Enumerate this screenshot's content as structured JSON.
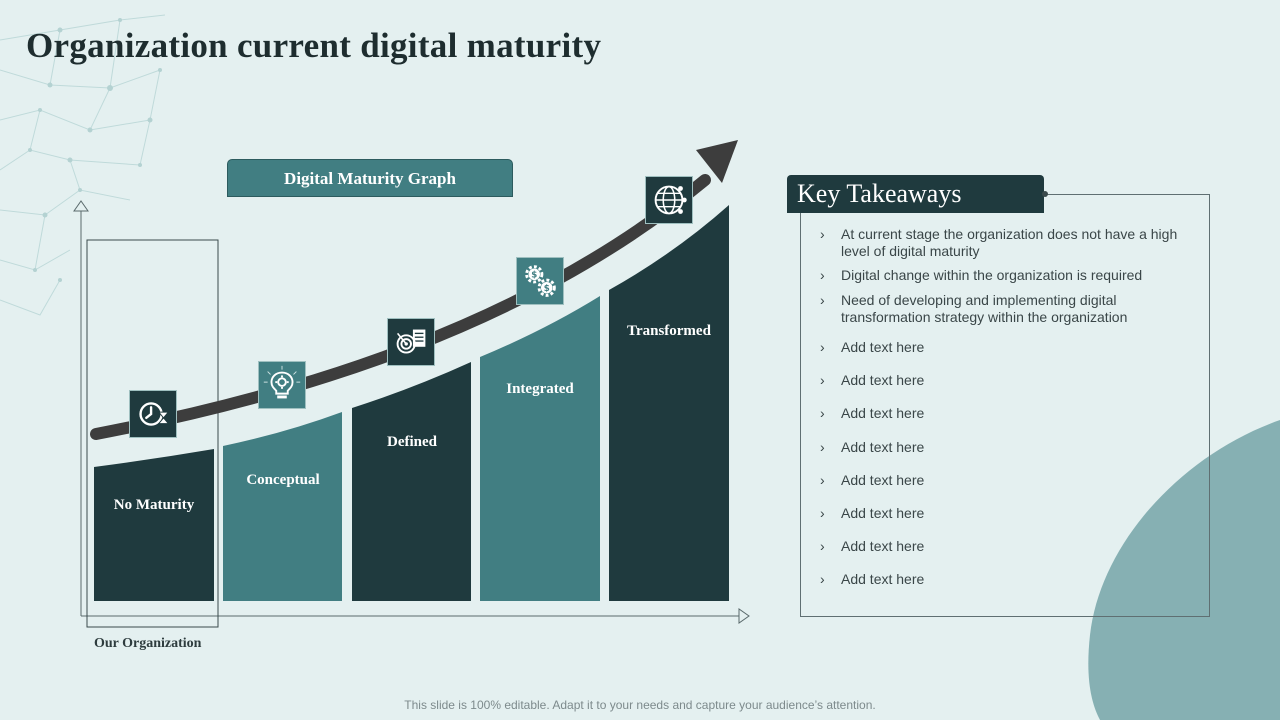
{
  "slide": {
    "title": "Organization current digital maturity",
    "footer": "This slide is 100% editable. Adapt it to your needs and capture your audience’s attention."
  },
  "graph": {
    "label": "Digital Maturity Graph",
    "org_label": "Our Organization",
    "stages": [
      {
        "label": "No Maturity",
        "icon": "clock-hourglass-icon",
        "shade": "dark"
      },
      {
        "label": "Conceptual",
        "icon": "lightbulb-gear-icon",
        "shade": "teal"
      },
      {
        "label": "Defined",
        "icon": "target-document-icon",
        "shade": "dark"
      },
      {
        "label": "Integrated",
        "icon": "gears-dollar-icon",
        "shade": "teal"
      },
      {
        "label": "Transformed",
        "icon": "globe-network-icon",
        "shade": "dark"
      }
    ]
  },
  "takeaways": {
    "title": "Key Takeaways",
    "items": [
      "At current stage the organization does not have a high level of digital maturity",
      "Digital change within the organization is required",
      "Need of developing and implementing digital transformation strategy within the organization",
      "Add text here",
      "Add text here",
      "Add text here",
      "Add text here",
      "Add text here",
      "Add text here",
      "Add text here",
      "Add text here"
    ]
  },
  "colors": {
    "background": "#e4f0f0",
    "dark": "#1f3a3e",
    "teal": "#417e82",
    "arrow": "#3d3d3d",
    "blob": "#86b0b3"
  }
}
